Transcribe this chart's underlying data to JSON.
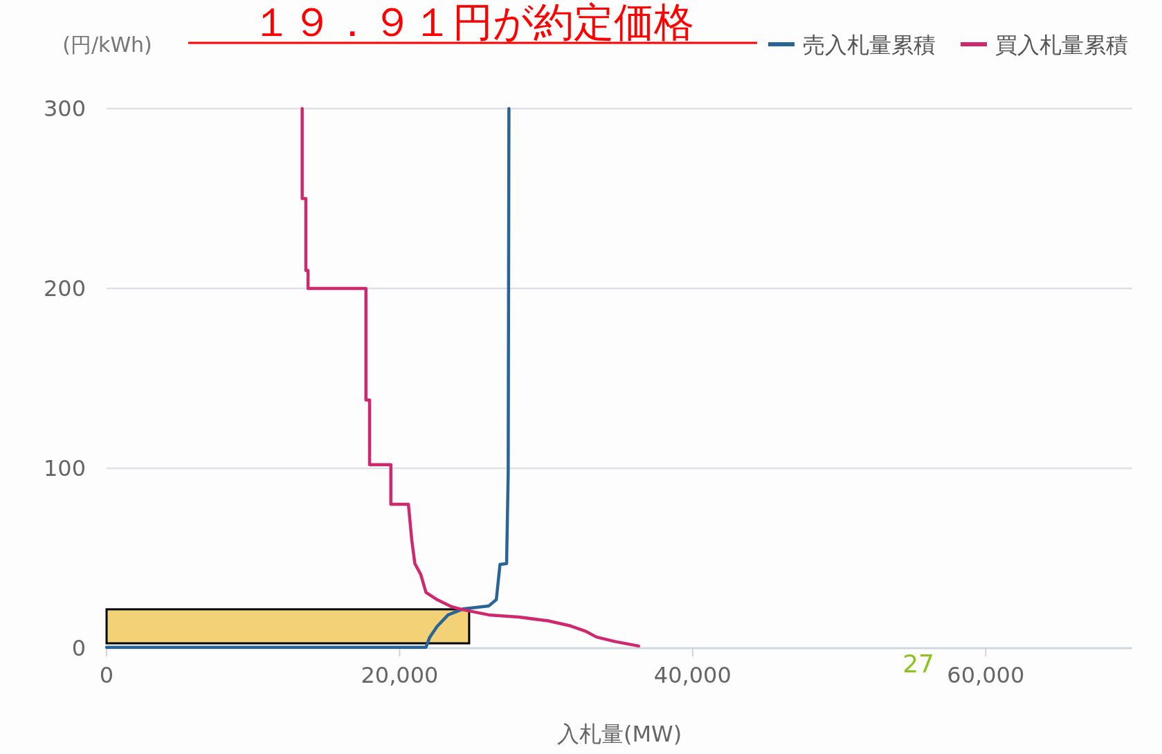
{
  "chart_data": {
    "type": "line",
    "title": "１９．９１円が約定価格",
    "ylabel": "(円/kWh)",
    "xlabel": "入札量(MW)",
    "annotations": [
      "27"
    ],
    "xlim": [
      0,
      70000
    ],
    "xticks": [
      {
        "value": 0,
        "label": "0"
      },
      {
        "value": 20000,
        "label": "20,000"
      },
      {
        "value": 40000,
        "label": "40,000"
      },
      {
        "value": 60000,
        "label": "60,000"
      }
    ],
    "ylim": [
      0,
      300
    ],
    "yticks": [
      0,
      100,
      200,
      300
    ],
    "grid": "y",
    "legend": "top right",
    "marker": "none",
    "line_style": "solid",
    "series": [
      {
        "name": "売入札量累積",
        "color": "#2a6496",
        "x": [
          0,
          21800,
          22050,
          22550,
          23310,
          24320,
          26090,
          26600,
          26850,
          27300,
          27410,
          27460
        ],
        "values": [
          0.5,
          0.5,
          6,
          12,
          18.5,
          21.8,
          23.5,
          27,
          46.5,
          47,
          97,
          300
        ]
      },
      {
        "name": "買入札量累積",
        "color": "#d0286e",
        "x": [
          13350,
          13350,
          13600,
          13600,
          13750,
          13750,
          14000,
          17700,
          17700,
          17950,
          17950,
          18050,
          19400,
          19400,
          20600,
          20830,
          21040,
          21440,
          21800,
          22550,
          23560,
          24320,
          26090,
          28120,
          30140,
          31660,
          32670,
          33430,
          34690,
          36310
        ],
        "values": [
          300,
          250,
          250,
          210,
          210,
          200,
          200,
          200,
          138,
          138,
          102,
          102,
          102,
          80,
          80,
          60,
          47,
          41,
          31,
          27,
          23,
          21.4,
          18.5,
          17.3,
          15.2,
          12.4,
          9.5,
          6.2,
          3.7,
          1.2
        ]
      }
    ]
  }
}
